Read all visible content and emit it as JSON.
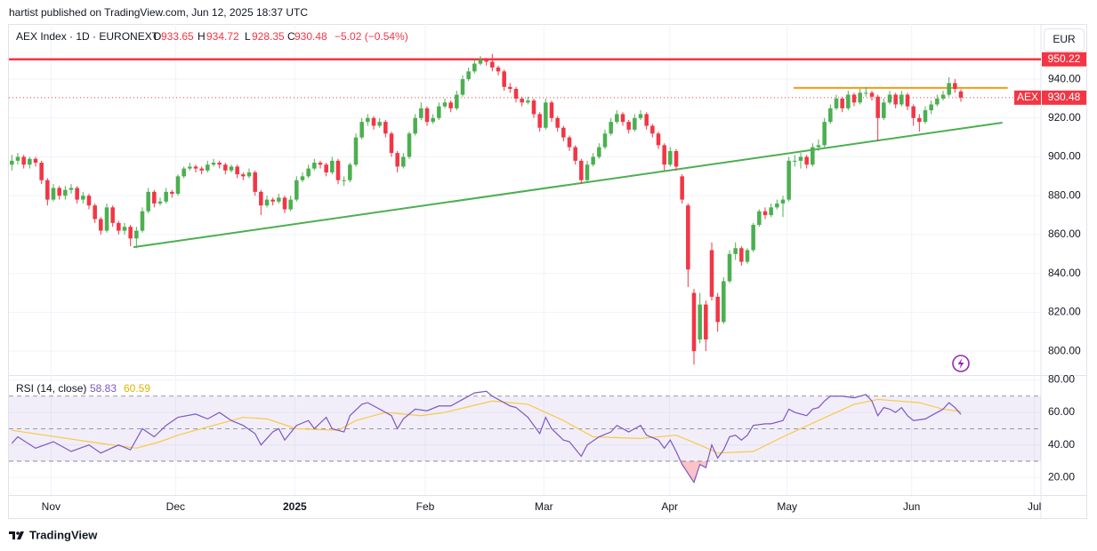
{
  "header": {
    "byline": "hartist published on TradingView.com, Jun 12, 2025 18:37 UTC",
    "brand": "TradingView"
  },
  "chart_data": {
    "type": "candlestick",
    "title": "AEX Index · 1D · EURONEXT",
    "ohlc_keys": [
      "O",
      "H",
      "L",
      "C"
    ],
    "change": "−5.02 (−0.54%)",
    "currency": "EUR",
    "last_symbol": "AEX",
    "up_color": "#4caf50",
    "down_color": "#f23645",
    "candles": [
      [
        896,
        901,
        893,
        898
      ],
      [
        898,
        902,
        896,
        900
      ],
      [
        900,
        901,
        894,
        896
      ],
      [
        896,
        900,
        894,
        899
      ],
      [
        899,
        900,
        895,
        897
      ],
      [
        897,
        898,
        886,
        888
      ],
      [
        888,
        889,
        875,
        878
      ],
      [
        878,
        886,
        877,
        884
      ],
      [
        884,
        885,
        878,
        880
      ],
      [
        880,
        885,
        878,
        883
      ],
      [
        883,
        886,
        881,
        884
      ],
      [
        884,
        885,
        876,
        878
      ],
      [
        878,
        882,
        876,
        880
      ],
      [
        880,
        881,
        873,
        875
      ],
      [
        875,
        876,
        866,
        868
      ],
      [
        868,
        869,
        860,
        862
      ],
      [
        862,
        876,
        861,
        874
      ],
      [
        874,
        875,
        864,
        866
      ],
      [
        866,
        867,
        860,
        862
      ],
      [
        862,
        866,
        860,
        864
      ],
      [
        864,
        865,
        854,
        858
      ],
      [
        858,
        864,
        853,
        862
      ],
      [
        862,
        874,
        861,
        872
      ],
      [
        872,
        884,
        871,
        882
      ],
      [
        882,
        883,
        874,
        876
      ],
      [
        876,
        879,
        875,
        877
      ],
      [
        877,
        884,
        876,
        882
      ],
      [
        882,
        883,
        879,
        881
      ],
      [
        881,
        891,
        880,
        890
      ],
      [
        890,
        895,
        889,
        894
      ],
      [
        894,
        897,
        893,
        895
      ],
      [
        895,
        896,
        892,
        894
      ],
      [
        894,
        895,
        891,
        893
      ],
      [
        893,
        898,
        892,
        896
      ],
      [
        896,
        899,
        895,
        897
      ],
      [
        897,
        898,
        894,
        896
      ],
      [
        896,
        897,
        891,
        893
      ],
      [
        893,
        896,
        892,
        895
      ],
      [
        895,
        896,
        889,
        891
      ],
      [
        891,
        892,
        888,
        890
      ],
      [
        890,
        894,
        889,
        892
      ],
      [
        892,
        893,
        880,
        882
      ],
      [
        882,
        883,
        870,
        875
      ],
      [
        875,
        880,
        874,
        878
      ],
      [
        878,
        879,
        875,
        877
      ],
      [
        877,
        881,
        876,
        879
      ],
      [
        879,
        880,
        871,
        873
      ],
      [
        873,
        880,
        872,
        878
      ],
      [
        878,
        890,
        877,
        888
      ],
      [
        888,
        892,
        887,
        890
      ],
      [
        890,
        896,
        889,
        894
      ],
      [
        894,
        899,
        893,
        897
      ],
      [
        897,
        898,
        894,
        896
      ],
      [
        896,
        897,
        890,
        892
      ],
      [
        892,
        900,
        891,
        898
      ],
      [
        898,
        899,
        886,
        888
      ],
      [
        888,
        890,
        885,
        888
      ],
      [
        888,
        897,
        887,
        896
      ],
      [
        896,
        912,
        895,
        910
      ],
      [
        910,
        920,
        909,
        918
      ],
      [
        918,
        922,
        916,
        920
      ],
      [
        920,
        921,
        914,
        916
      ],
      [
        916,
        920,
        915,
        918
      ],
      [
        918,
        919,
        910,
        912
      ],
      [
        912,
        913,
        900,
        902
      ],
      [
        902,
        903,
        892,
        895
      ],
      [
        895,
        902,
        894,
        900
      ],
      [
        900,
        913,
        899,
        912
      ],
      [
        912,
        922,
        911,
        920
      ],
      [
        920,
        928,
        919,
        925
      ],
      [
        925,
        926,
        916,
        918
      ],
      [
        918,
        922,
        917,
        920
      ],
      [
        920,
        928,
        919,
        926
      ],
      [
        926,
        930,
        925,
        928
      ],
      [
        928,
        929,
        923,
        925
      ],
      [
        925,
        934,
        924,
        932
      ],
      [
        932,
        942,
        931,
        940
      ],
      [
        940,
        946,
        939,
        944
      ],
      [
        944,
        950,
        943,
        948
      ],
      [
        948,
        952,
        947,
        950
      ],
      [
        950,
        951,
        947,
        949
      ],
      [
        949,
        953,
        944,
        946
      ],
      [
        946,
        947,
        942,
        944
      ],
      [
        944,
        945,
        934,
        936
      ],
      [
        936,
        938,
        933,
        935
      ],
      [
        935,
        936,
        928,
        930
      ],
      [
        930,
        931,
        926,
        928
      ],
      [
        928,
        931,
        927,
        929
      ],
      [
        929,
        930,
        920,
        922
      ],
      [
        922,
        923,
        913,
        915
      ],
      [
        915,
        930,
        914,
        928
      ],
      [
        928,
        929,
        918,
        920
      ],
      [
        920,
        921,
        913,
        915
      ],
      [
        915,
        916,
        908,
        910
      ],
      [
        910,
        911,
        903,
        905
      ],
      [
        905,
        906,
        896,
        898
      ],
      [
        898,
        899,
        886,
        888
      ],
      [
        888,
        898,
        887,
        896
      ],
      [
        896,
        902,
        895,
        900
      ],
      [
        900,
        907,
        899,
        905
      ],
      [
        905,
        914,
        904,
        912
      ],
      [
        912,
        920,
        911,
        918
      ],
      [
        918,
        924,
        917,
        922
      ],
      [
        922,
        923,
        916,
        918
      ],
      [
        918,
        919,
        912,
        914
      ],
      [
        914,
        922,
        913,
        920
      ],
      [
        920,
        924,
        919,
        922
      ],
      [
        922,
        923,
        914,
        916
      ],
      [
        916,
        917,
        910,
        912
      ],
      [
        912,
        913,
        904,
        906
      ],
      [
        906,
        907,
        893,
        896
      ],
      [
        896,
        905,
        895,
        903
      ],
      [
        903,
        904,
        893,
        895
      ],
      [
        890,
        891,
        876,
        878
      ],
      [
        875,
        876,
        833,
        842
      ],
      [
        830,
        832,
        793,
        800
      ],
      [
        806,
        830,
        804,
        824
      ],
      [
        824,
        826,
        800,
        806
      ],
      [
        852,
        856,
        826,
        828
      ],
      [
        828,
        830,
        810,
        815
      ],
      [
        815,
        838,
        814,
        836
      ],
      [
        836,
        852,
        835,
        850
      ],
      [
        850,
        856,
        847,
        853
      ],
      [
        853,
        854,
        844,
        846
      ],
      [
        846,
        853,
        845,
        852
      ],
      [
        852,
        866,
        851,
        865
      ],
      [
        865,
        873,
        864,
        872
      ],
      [
        872,
        874,
        868,
        870
      ],
      [
        870,
        876,
        869,
        874
      ],
      [
        874,
        878,
        873,
        876
      ],
      [
        876,
        880,
        869,
        878
      ],
      [
        878,
        900,
        877,
        898
      ],
      [
        898,
        901,
        895,
        898
      ],
      [
        898,
        902,
        894,
        900
      ],
      [
        900,
        901,
        894,
        896
      ],
      [
        896,
        907,
        895,
        905
      ],
      [
        905,
        909,
        903,
        906
      ],
      [
        906,
        920,
        905,
        918
      ],
      [
        918,
        927,
        917,
        925
      ],
      [
        925,
        932,
        924,
        930
      ],
      [
        930,
        931,
        923,
        925
      ],
      [
        925,
        934,
        924,
        932
      ],
      [
        932,
        933,
        926,
        928
      ],
      [
        928,
        935,
        927,
        933
      ],
      [
        933,
        936,
        931,
        933
      ],
      [
        933,
        934,
        929,
        931
      ],
      [
        931,
        932,
        908,
        920
      ],
      [
        920,
        930,
        919,
        928
      ],
      [
        928,
        934,
        927,
        932
      ],
      [
        932,
        933,
        925,
        927
      ],
      [
        927,
        934,
        926,
        932
      ],
      [
        932,
        933,
        924,
        926
      ],
      [
        926,
        927,
        916,
        920
      ],
      [
        920,
        922,
        913,
        918
      ],
      [
        918,
        926,
        917,
        924
      ],
      [
        924,
        929,
        922,
        927
      ],
      [
        927,
        932,
        926,
        930
      ],
      [
        930,
        934,
        929,
        932
      ],
      [
        932,
        941,
        931,
        938
      ],
      [
        938,
        940,
        933,
        935
      ],
      [
        933.65,
        934.72,
        928.35,
        930.48
      ]
    ],
    "xlim": [
      -0.5,
      173.5
    ],
    "xticks": [
      {
        "value": 6.6,
        "label": "Nov"
      },
      {
        "value": 27.6,
        "label": "Dec"
      },
      {
        "value": 47.7,
        "label": "2025"
      },
      {
        "value": 69.7,
        "label": "Feb"
      },
      {
        "value": 89.7,
        "label": "Mar"
      },
      {
        "value": 110.9,
        "label": "Apr"
      },
      {
        "value": 130.7,
        "label": "May"
      },
      {
        "value": 151.7,
        "label": "Jun"
      },
      {
        "value": 172.4,
        "label": "Jul"
      }
    ],
    "ylim": [
      787.7,
      968.4
    ],
    "yticks": [
      {
        "value": 800,
        "label": "800.00"
      },
      {
        "value": 820,
        "label": "820.00"
      },
      {
        "value": 840,
        "label": "840.00"
      },
      {
        "value": 860,
        "label": "860.00"
      },
      {
        "value": 880,
        "label": "880.00"
      },
      {
        "value": 900,
        "label": "900.00"
      },
      {
        "value": 920,
        "label": "920.00"
      },
      {
        "value": 940,
        "label": "940.00"
      }
    ],
    "grid": true,
    "levels": [
      {
        "value": 950.22,
        "color": "#f23645"
      }
    ],
    "trendlines": [
      {
        "x": [
          20.5,
          167
        ],
        "values": [
          853.5,
          917.6
        ],
        "color": "#4caf50"
      },
      {
        "x": [
          131.8,
          167.9
        ],
        "values": [
          935.5,
          935.5
        ],
        "color": "#f39c12"
      }
    ],
    "rsi": {
      "title": "RSI (14, close)",
      "color": "#7e57c2",
      "x": [
        0,
        1,
        4,
        7,
        10,
        13,
        15,
        18,
        20,
        22,
        24,
        26,
        28,
        31,
        33,
        35,
        37,
        39,
        41,
        42,
        44,
        45,
        46,
        48,
        50,
        51,
        53,
        54,
        56,
        57,
        59,
        60,
        62,
        64,
        65,
        66,
        68,
        70,
        72,
        74,
        76,
        78,
        80,
        81,
        84,
        85,
        87,
        88,
        89,
        90,
        91,
        93,
        94,
        96,
        97,
        99,
        101,
        102,
        104,
        105,
        106,
        107,
        109,
        110,
        111,
        112,
        113,
        115,
        116,
        117,
        118,
        119,
        120,
        121,
        122,
        123,
        124,
        125,
        127,
        128,
        130,
        131,
        132,
        134,
        135,
        136,
        137,
        138,
        140,
        142,
        144,
        145,
        146,
        147,
        148,
        149,
        150,
        151,
        152,
        154,
        156,
        157,
        158,
        159,
        160
      ],
      "values": [
        41,
        45,
        38,
        42,
        36,
        40,
        35,
        40,
        37,
        50,
        45,
        52,
        57,
        59,
        56,
        60,
        55,
        52,
        47,
        40,
        48,
        50,
        43,
        52,
        55,
        50,
        57,
        50,
        48,
        58,
        65,
        66,
        62,
        58,
        50,
        56,
        62,
        61,
        64,
        64,
        68,
        72,
        73,
        70,
        64,
        63,
        57,
        52,
        47,
        57,
        50,
        43,
        42,
        33,
        40,
        45,
        48,
        52,
        48,
        50,
        52,
        46,
        43,
        38,
        43,
        36,
        28,
        17,
        28,
        26,
        40,
        32,
        37,
        45,
        46,
        43,
        46,
        52,
        53,
        53,
        55,
        62,
        60,
        58,
        62,
        63,
        67,
        70,
        70,
        69,
        71,
        67,
        58,
        63,
        62,
        60,
        63,
        58,
        55,
        56,
        60,
        62,
        66,
        63,
        58.83
      ],
      "ma": {
        "color": "#f7c948",
        "x": [
          0,
          13,
          21,
          25,
          28,
          34,
          39,
          43,
          48,
          55,
          58,
          63,
          69,
          73,
          81,
          87,
          93,
          98,
          106,
          112,
          116,
          119,
          125,
          130,
          136,
          142,
          146,
          153,
          157,
          160
        ],
        "values": [
          49,
          42,
          38,
          42,
          46,
          52,
          57,
          56,
          50,
          49,
          55,
          60,
          58,
          60,
          67,
          65,
          55,
          45,
          44,
          46,
          40,
          35,
          36,
          45,
          55,
          65,
          68,
          66,
          62,
          60.59
        ]
      },
      "ylim": [
        9.2,
        83
      ],
      "yticks": [
        {
          "value": 20,
          "label": "20.00"
        },
        {
          "value": 40,
          "label": "40.00"
        },
        {
          "value": 60,
          "label": "60.00"
        },
        {
          "value": 80,
          "label": "80.00"
        }
      ],
      "bands": [
        70,
        50,
        30
      ]
    }
  }
}
